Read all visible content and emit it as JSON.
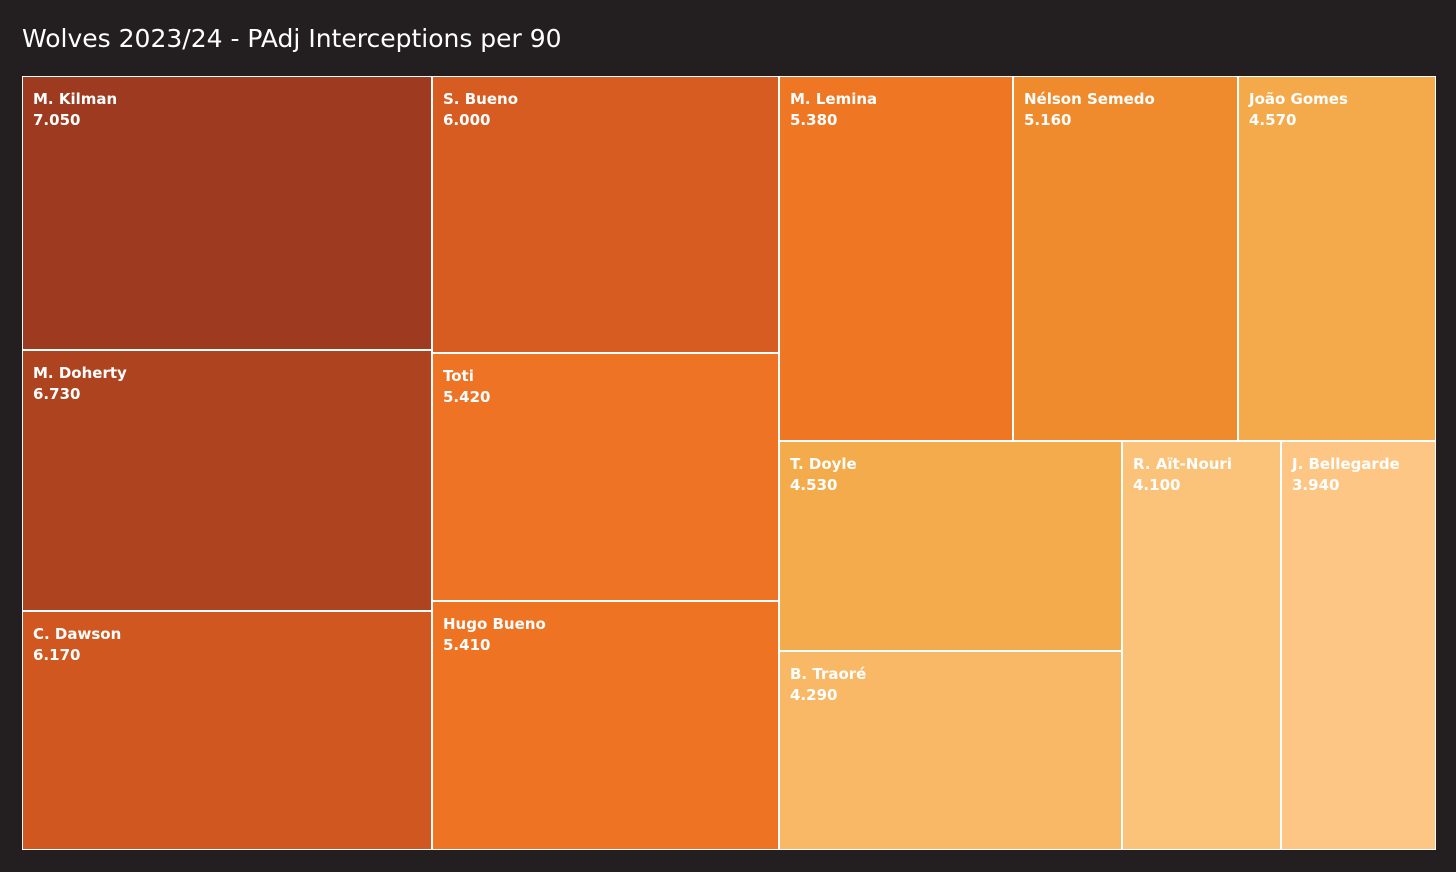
{
  "chart_data": {
    "type": "treemap",
    "title": "Wolves 2023/24 - PAdj Interceptions per 90",
    "items": [
      {
        "name": "M. Kilman",
        "value": 7.05,
        "label": "7.050",
        "color": "#9e3a1f"
      },
      {
        "name": "M. Doherty",
        "value": 6.73,
        "label": "6.730",
        "color": "#ae441f"
      },
      {
        "name": "C. Dawson",
        "value": 6.17,
        "label": "6.170",
        "color": "#d05820"
      },
      {
        "name": "S. Bueno",
        "value": 6.0,
        "label": "6.000",
        "color": "#d75c22"
      },
      {
        "name": "Toti",
        "value": 5.42,
        "label": "5.420",
        "color": "#ee7325"
      },
      {
        "name": "Hugo Bueno",
        "value": 5.41,
        "label": "5.410",
        "color": "#ee7423"
      },
      {
        "name": "M. Lemina",
        "value": 5.38,
        "label": "5.380",
        "color": "#ef7724"
      },
      {
        "name": "Nélson Semedo",
        "value": 5.16,
        "label": "5.160",
        "color": "#f08b2d"
      },
      {
        "name": "João Gomes",
        "value": 4.57,
        "label": "4.570",
        "color": "#f4a94a"
      },
      {
        "name": "T. Doyle",
        "value": 4.53,
        "label": "4.530",
        "color": "#f4ab4c"
      },
      {
        "name": "B. Traoré",
        "value": 4.29,
        "label": "4.290",
        "color": "#f9b865"
      },
      {
        "name": "R. Aït-Nouri",
        "value": 4.1,
        "label": "4.100",
        "color": "#fbc27a"
      },
      {
        "name": "J. Bellegarde",
        "value": 3.94,
        "label": "3.940",
        "color": "#fec685"
      }
    ]
  }
}
